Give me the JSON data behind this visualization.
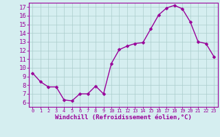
{
  "x": [
    0,
    1,
    2,
    3,
    4,
    5,
    6,
    7,
    8,
    9,
    10,
    11,
    12,
    13,
    14,
    15,
    16,
    17,
    18,
    19,
    20,
    21,
    22,
    23
  ],
  "y": [
    9.4,
    8.4,
    7.8,
    7.8,
    6.3,
    6.2,
    7.0,
    7.0,
    7.9,
    7.0,
    10.5,
    12.1,
    12.5,
    12.8,
    12.9,
    14.5,
    16.1,
    16.9,
    17.2,
    16.8,
    15.3,
    13.0,
    12.8,
    11.3
  ],
  "line_color": "#990099",
  "marker": "D",
  "marker_size": 2.5,
  "background_color": "#d5eef0",
  "grid_color": "#aacccc",
  "xlabel": "Windchill (Refroidissement éolien,°C)",
  "ylabel": "",
  "xlim": [
    -0.5,
    23.5
  ],
  "ylim": [
    5.5,
    17.5
  ],
  "yticks": [
    6,
    7,
    8,
    9,
    10,
    11,
    12,
    13,
    14,
    15,
    16,
    17
  ],
  "xticks": [
    0,
    1,
    2,
    3,
    4,
    5,
    6,
    7,
    8,
    9,
    10,
    11,
    12,
    13,
    14,
    15,
    16,
    17,
    18,
    19,
    20,
    21,
    22,
    23
  ],
  "tick_color": "#990099",
  "axis_color": "#990099",
  "xlabel_fontsize": 6.5,
  "tick_fontsize": 6.5,
  "line_width": 1.0
}
